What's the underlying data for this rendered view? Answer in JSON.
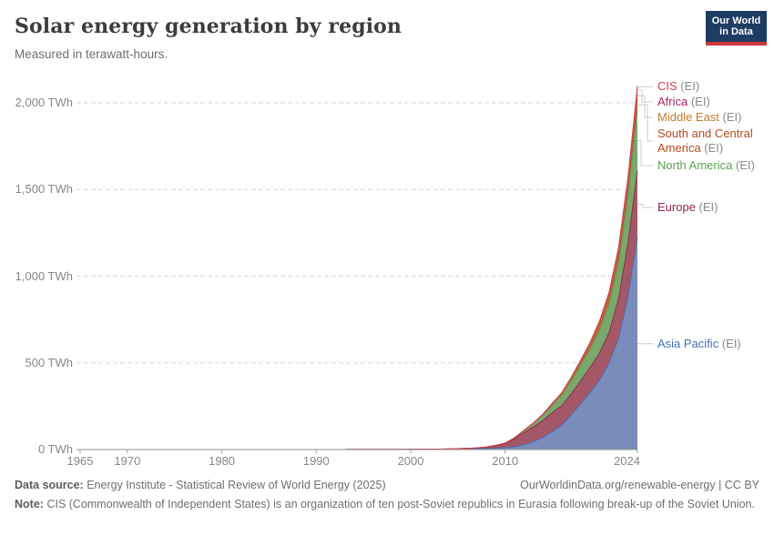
{
  "header": {
    "title": "Solar energy generation by region",
    "subtitle": "Measured in terawatt-hours."
  },
  "logo": {
    "line1": "Our World",
    "line2": "in Data",
    "bg_color": "#1d3d63",
    "accent_color": "#d13639"
  },
  "chart_data": {
    "type": "area",
    "stacked": true,
    "title": "Solar energy generation by region",
    "unit": "TWh",
    "xlabel": "",
    "ylabel": "TWh",
    "ylim": [
      0,
      2100
    ],
    "grid": "dashed horizontal",
    "legend_position": "right",
    "years": [
      1965,
      1966,
      1967,
      1968,
      1969,
      1970,
      1971,
      1972,
      1973,
      1974,
      1975,
      1976,
      1977,
      1978,
      1979,
      1980,
      1981,
      1982,
      1983,
      1984,
      1985,
      1986,
      1987,
      1988,
      1989,
      1990,
      1991,
      1992,
      1993,
      1994,
      1995,
      1996,
      1997,
      1998,
      1999,
      2000,
      2001,
      2002,
      2003,
      2004,
      2005,
      2006,
      2007,
      2008,
      2009,
      2010,
      2011,
      2012,
      2013,
      2014,
      2015,
      2016,
      2017,
      2018,
      2019,
      2020,
      2021,
      2022,
      2023,
      2024
    ],
    "series": [
      {
        "name": "Asia Pacific",
        "color": "#4470b4",
        "fill": "#7a8cba",
        "values": [
          0,
          0,
          0,
          0,
          0,
          0,
          0,
          0,
          0,
          0,
          0,
          0,
          0,
          0,
          0,
          0,
          0,
          0,
          0,
          0,
          0,
          0,
          0,
          0,
          0,
          0.1,
          0.1,
          0.2,
          0.2,
          0.3,
          0.4,
          0.4,
          0.5,
          0.6,
          0.7,
          0.8,
          1,
          1.3,
          1.6,
          2,
          2.5,
          3.1,
          4.2,
          5.5,
          7.5,
          10,
          16,
          27,
          46,
          70,
          103,
          140,
          200,
          265,
          330,
          400,
          500,
          640,
          880,
          1220
        ]
      },
      {
        "name": "Europe",
        "color": "#8e2a43",
        "fill": "#a35767",
        "values": [
          0,
          0,
          0,
          0,
          0,
          0,
          0,
          0,
          0,
          0,
          0,
          0,
          0,
          0,
          0,
          0,
          0,
          0,
          0,
          0,
          0,
          0,
          0,
          0,
          0,
          0,
          0,
          0,
          0,
          0,
          0,
          0,
          0,
          0,
          0,
          0.1,
          0.2,
          0.3,
          0.4,
          0.7,
          1.5,
          2.5,
          3.9,
          7.4,
          14,
          23,
          46,
          71,
          85,
          98,
          110,
          114,
          122,
          132,
          144,
          158,
          175,
          230,
          310,
          390
        ]
      },
      {
        "name": "North America",
        "color": "#5d9e55",
        "fill": "#79a76c",
        "values": [
          0,
          0,
          0,
          0,
          0,
          0,
          0,
          0,
          0,
          0,
          0,
          0,
          0,
          0,
          0,
          0,
          0,
          0,
          0,
          0,
          0,
          0,
          0,
          0,
          0,
          0.5,
          0.5,
          0.5,
          0.5,
          0.5,
          0.5,
          0.5,
          0.5,
          0.6,
          0.6,
          0.6,
          0.7,
          0.7,
          0.8,
          0.9,
          1,
          1.1,
          1.4,
          1.8,
          2.5,
          3.5,
          6,
          12,
          20,
          32,
          45,
          60,
          75,
          90,
          105,
          130,
          160,
          200,
          260,
          345
        ]
      },
      {
        "name": "South and Central America",
        "color": "#b34a1f",
        "fill": "#c4704c",
        "values": [
          0,
          0,
          0,
          0,
          0,
          0,
          0,
          0,
          0,
          0,
          0,
          0,
          0,
          0,
          0,
          0,
          0,
          0,
          0,
          0,
          0,
          0,
          0,
          0,
          0,
          0,
          0,
          0,
          0,
          0,
          0,
          0,
          0,
          0,
          0,
          0,
          0,
          0,
          0,
          0,
          0,
          0,
          0,
          0,
          0,
          0.1,
          0.2,
          0.3,
          0.5,
          1,
          2.5,
          5,
          8,
          12,
          17,
          25,
          35,
          48,
          58,
          66
        ]
      },
      {
        "name": "Middle East",
        "color": "#bf7b2c",
        "fill": "#d29a57",
        "values": [
          0,
          0,
          0,
          0,
          0,
          0,
          0,
          0,
          0,
          0,
          0,
          0,
          0,
          0,
          0,
          0,
          0,
          0,
          0,
          0,
          0,
          0,
          0,
          0,
          0,
          0,
          0,
          0,
          0,
          0,
          0,
          0,
          0,
          0,
          0,
          0,
          0,
          0,
          0,
          0,
          0,
          0,
          0,
          0,
          0,
          0.1,
          0.2,
          0.4,
          0.6,
          1,
          2,
          3,
          4.5,
          6,
          9,
          13,
          17,
          23,
          30,
          39
        ]
      },
      {
        "name": "Africa",
        "color": "#a2266b",
        "fill": "#bd6096",
        "values": [
          0,
          0,
          0,
          0,
          0,
          0,
          0,
          0,
          0,
          0,
          0,
          0,
          0,
          0,
          0,
          0,
          0,
          0,
          0,
          0,
          0,
          0,
          0,
          0,
          0,
          0,
          0,
          0,
          0,
          0,
          0,
          0,
          0,
          0,
          0,
          0,
          0,
          0,
          0,
          0,
          0,
          0,
          0,
          0,
          0,
          0.3,
          0.5,
          1,
          2,
          3,
          4.5,
          6,
          8,
          10,
          12,
          14,
          16,
          19,
          23,
          28
        ]
      },
      {
        "name": "CIS",
        "color": "#d63e52",
        "fill": "#e0707d",
        "values": [
          0,
          0,
          0,
          0,
          0,
          0,
          0,
          0,
          0,
          0,
          0,
          0,
          0,
          0,
          0,
          0,
          0,
          0,
          0,
          0,
          0,
          0,
          0,
          0,
          0,
          0,
          0,
          0,
          0,
          0,
          0,
          0,
          0,
          0,
          0,
          0,
          0,
          0,
          0,
          0,
          0,
          0,
          0,
          0,
          0,
          0,
          0,
          0,
          0,
          0,
          0.1,
          0.5,
          0.8,
          1.3,
          2.5,
          4,
          5,
          6,
          7.5,
          9
        ]
      }
    ],
    "y_ticks": [
      {
        "value": 0,
        "label": "0 TWh"
      },
      {
        "value": 500,
        "label": "500 TWh"
      },
      {
        "value": 1000,
        "label": "1,000 TWh"
      },
      {
        "value": 1500,
        "label": "1,500 TWh"
      },
      {
        "value": 2000,
        "label": "2,000 TWh"
      }
    ],
    "x_ticks": [
      {
        "year": 1965,
        "label": "1965"
      },
      {
        "year": 1970,
        "label": "1970"
      },
      {
        "year": 1980,
        "label": "1980"
      },
      {
        "year": 1990,
        "label": "1990"
      },
      {
        "year": 2000,
        "label": "2000"
      },
      {
        "year": 2010,
        "label": "2010"
      },
      {
        "year": 2024,
        "label": "2024"
      }
    ],
    "legend": [
      {
        "label": "CIS",
        "suffix": "(EI)",
        "color": "#d63e52",
        "top": 87,
        "center_y": 95,
        "elbow_x": 708
      },
      {
        "label": "Africa",
        "suffix": "(EI)",
        "color": "#a2266b",
        "top": 104,
        "center_y": 112,
        "elbow_x": 705
      },
      {
        "label": "Middle East",
        "suffix": "(EI)",
        "color": "#bf7b2c",
        "top": 121,
        "center_y": 129,
        "elbow_x": 708
      },
      {
        "label": "South and Central America",
        "suffix": "(EI)",
        "color": "#b34a1f",
        "top": 139,
        "center_y": 155,
        "elbow_x": 711
      },
      {
        "label": "North America",
        "suffix": "(EI)",
        "color": "#5d9e55",
        "top": 174,
        "center_y": 182,
        "elbow_x": 704
      },
      {
        "label": "Europe",
        "suffix": "(EI)",
        "color": "#8e2a43",
        "top": 220,
        "center_y": 228,
        "elbow_x": 706
      },
      {
        "label": "Asia Pacific",
        "suffix": "(EI)",
        "color": "#4470b4",
        "top": 370,
        "center_y": 378,
        "elbow_x": 708
      }
    ]
  },
  "footer": {
    "source_label": "Data source:",
    "source_text": "Energy Institute - Statistical Review of World Energy (2025)",
    "url": "OurWorldinData.org/renewable-energy",
    "divider": "|",
    "license": "CC BY",
    "note_label": "Note:",
    "note_text": "CIS (Commonwealth of Independent States) is an organization of ten post-Soviet republics in Eurasia following break-up of the Soviet Union."
  }
}
